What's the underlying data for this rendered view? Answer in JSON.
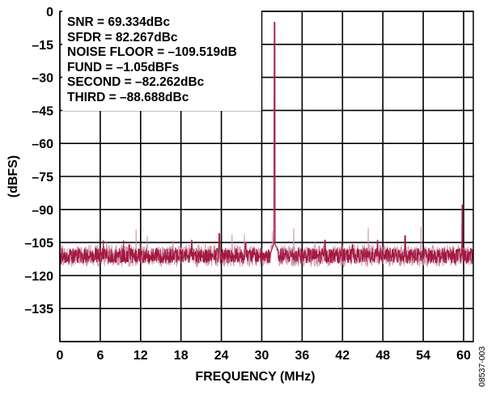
{
  "figure_id": "08537-003",
  "chart_data": {
    "type": "line",
    "title": "",
    "xlabel": "FREQUENCY (MHz)",
    "ylabel": "(dBFS)",
    "xlim": [
      0,
      61.44
    ],
    "ylim": [
      -150,
      0
    ],
    "x_ticks": [
      0,
      6,
      12,
      18,
      24,
      30,
      36,
      42,
      48,
      54,
      60
    ],
    "y_ticks": [
      0,
      -15,
      -30,
      -45,
      -60,
      -75,
      -90,
      -105,
      -120,
      -135
    ],
    "y_tick_labels": [
      "0",
      "–15",
      "–30",
      "–45",
      "–60",
      "–75",
      "–90",
      "–105",
      "–120",
      "–135"
    ],
    "grid": true,
    "noise_floor_level": -111,
    "annotations": [
      "SNR = 69.334dBc",
      "SFDR = 82.267dBc",
      "NOISE FLOOR = –109.519dB",
      "FUND = –1.05dBFs",
      "SECOND = –82.262dBc",
      "THIRD = –88.688dBc"
    ],
    "peaks": [
      {
        "x": 31.9,
        "y": -5
      },
      {
        "x": 59.8,
        "y": -88
      },
      {
        "x": 23.7,
        "y": -101
      },
      {
        "x": 51.3,
        "y": -102
      },
      {
        "x": 47.2,
        "y": -104
      },
      {
        "x": 39.4,
        "y": -104
      },
      {
        "x": 19.6,
        "y": -104
      },
      {
        "x": 27.6,
        "y": -105
      },
      {
        "x": 43.5,
        "y": -106
      },
      {
        "x": 10.3,
        "y": -106
      }
    ],
    "series_color": "#a3193f"
  }
}
